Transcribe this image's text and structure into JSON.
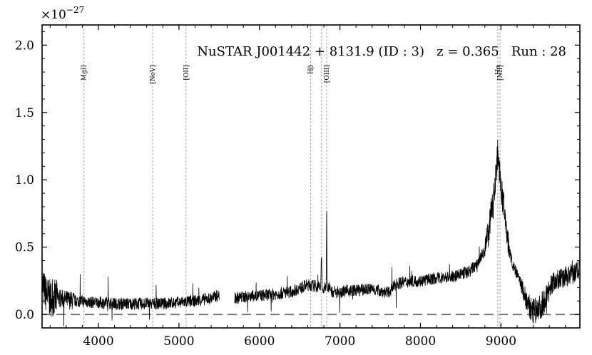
{
  "chart_data": {
    "type": "line",
    "title": "NuSTAR J001442 + 8131.9 (ID : 3)   z = 0.365   Run : 28",
    "xlabel": "",
    "ylabel": "",
    "y_multiplier_label": "×10",
    "y_multiplier_exponent": "−27",
    "xlim": [
      3300,
      9980
    ],
    "ylim": [
      -0.1,
      2.15
    ],
    "x_ticks": [
      4000,
      5000,
      6000,
      7000,
      8000,
      9000
    ],
    "y_ticks": [
      0.0,
      0.5,
      1.0,
      1.5,
      2.0
    ],
    "y_tick_labels": [
      "0.0",
      "0.5",
      "1.0",
      "1.5",
      "2.0"
    ],
    "grid": false,
    "zero_line": {
      "y": 0.0,
      "style": "dashed",
      "color": "#777777"
    },
    "emission_lines": [
      {
        "label": "MgII",
        "x": 3820
      },
      {
        "label": "[NeV]",
        "x": 4675
      },
      {
        "label": "[OII]",
        "x": 5088
      },
      {
        "label": "Hβ",
        "x": 6636
      },
      {
        "label": "[OIII]",
        "x": 6835
      },
      {
        "label": "Hα",
        "x": 8960
      },
      {
        "label": "[NII]",
        "x": 8988
      }
    ],
    "emission_line_extra_markers": [
      6771
    ],
    "series": [
      {
        "color": "#000000",
        "x": [
          3300,
          3350,
          3400,
          3500,
          3600,
          3700,
          3800,
          3900,
          4000,
          4200,
          4400,
          4600,
          4800,
          5000,
          5200,
          5300,
          5400,
          5480,
          5700,
          5800,
          6000,
          6200,
          6400,
          6600,
          6700,
          6760,
          6770,
          6780,
          6800,
          6830,
          6835,
          6840,
          6900,
          7000,
          7200,
          7400,
          7600,
          7700,
          7800,
          8000,
          8200,
          8400,
          8600,
          8700,
          8800,
          8850,
          8900,
          8940,
          8960,
          8980,
          9000,
          9050,
          9100,
          9150,
          9200,
          9250,
          9300,
          9350,
          9400,
          9450,
          9500,
          9550,
          9600,
          9650,
          9700,
          9800,
          9900,
          9980
        ],
        "y": [
          0.22,
          0.15,
          0.12,
          0.12,
          0.11,
          0.1,
          0.1,
          0.09,
          0.09,
          0.08,
          0.08,
          0.08,
          0.08,
          0.09,
          0.1,
          0.11,
          0.12,
          0.14,
          0.12,
          0.13,
          0.14,
          0.15,
          0.17,
          0.22,
          0.21,
          0.2,
          0.45,
          0.18,
          0.18,
          0.22,
          0.94,
          0.22,
          0.17,
          0.17,
          0.18,
          0.19,
          0.16,
          0.23,
          0.24,
          0.25,
          0.27,
          0.28,
          0.32,
          0.37,
          0.48,
          0.62,
          0.85,
          1.05,
          1.22,
          1.05,
          0.95,
          0.72,
          0.48,
          0.36,
          0.3,
          0.22,
          0.13,
          0.05,
          0.02,
          0.03,
          0.06,
          0.12,
          0.2,
          0.24,
          0.26,
          0.28,
          0.3,
          0.33
        ]
      }
    ]
  }
}
